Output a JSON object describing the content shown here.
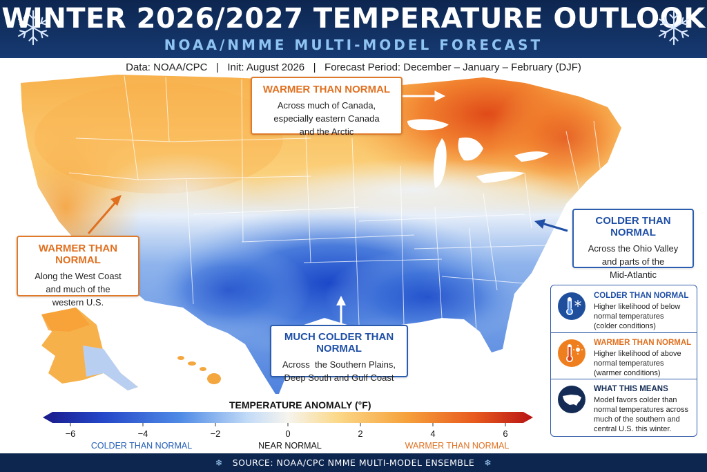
{
  "header": {
    "title": "WINTER 2026/2027 TEMPERATURE OUTLOOK",
    "subtitle": "NOAA/NMME MULTI-MODEL FORECAST"
  },
  "info_line": "Data: NOAA/CPC   |   Init: August 2026   |   Forecast Period: December – January – February (DJF)",
  "callouts": {
    "warm_canada": {
      "heading": "WARMER THAN NORMAL",
      "lines": [
        "Across much of Canada,",
        "especially eastern Canada",
        "and the Arctic"
      ]
    },
    "warm_west": {
      "heading": "WARMER THAN NORMAL",
      "lines": [
        "Along the West Coast",
        "and much of the",
        "western U.S."
      ]
    },
    "cold_ohio": {
      "heading": "COLDER THAN NORMAL",
      "lines": [
        "Across the Ohio Valley",
        "and parts of the",
        "Mid-Atlantic"
      ]
    },
    "cold_south": {
      "heading": "MUCH COLDER THAN NORMAL",
      "lines": [
        "Across  the Southern Plains,",
        "Deep South and Gulf Coast"
      ]
    }
  },
  "legend": {
    "cold": {
      "heading": "COLDER THAN NORMAL",
      "lines": [
        "Higher likelihood of below",
        "normal temperatures",
        "(colder conditions)"
      ],
      "icon": "cold-thermometer-icon"
    },
    "warm": {
      "heading": "WARMER THAN NORMAL",
      "lines": [
        "Higher likelihood of above",
        "normal temperatures",
        "(warmer conditions)"
      ],
      "icon": "warm-thermometer-icon"
    },
    "meaning": {
      "heading": "WHAT THIS MEANS",
      "lines": [
        "Model favors colder than",
        "normal temperatures across",
        "much of the southern and",
        "central U.S. this winter."
      ],
      "icon": "us-map-icon"
    }
  },
  "colorbar": {
    "title": "TEMPERATURE ANOMALY (°F)",
    "ticks": [
      "−6",
      "−4",
      "−2",
      "0",
      "2",
      "4",
      "6"
    ],
    "captions": {
      "cold": "COLDER THAN NORMAL",
      "near": "NEAR NORMAL",
      "warm": "WARMER THAN NORMAL"
    }
  },
  "footer": {
    "text": "SOURCE: NOAA/CPC NMME MULTI-MODEL ENSEMBLE",
    "icon": "snowflake-icon"
  },
  "colors": {
    "header_bg": "#0d2650",
    "subtitle": "#8fc4f2",
    "warm_accent": "#e07020",
    "cold_accent": "#1f4fa6",
    "much_warmer": "#e0521c",
    "much_colder": "#1d4fc4"
  }
}
